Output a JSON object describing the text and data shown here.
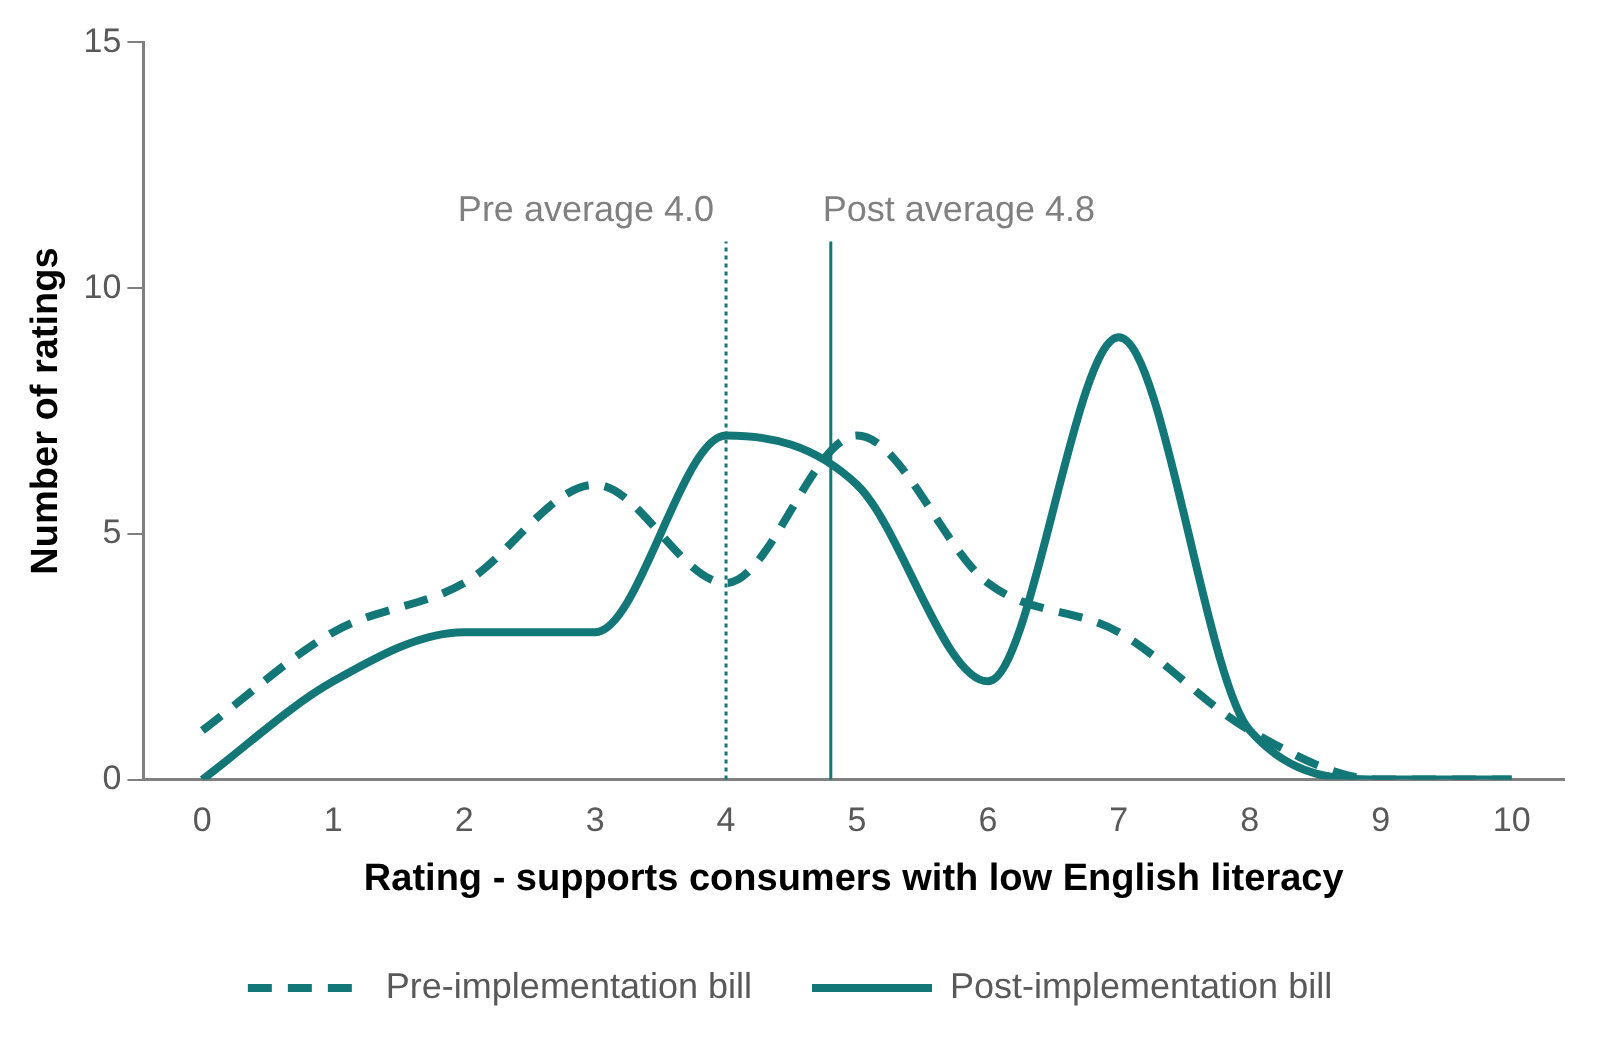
{
  "chart_data": {
    "type": "line",
    "xlabel": "Rating - supports consumers with low English literacy",
    "ylabel": "Number of ratings",
    "x": [
      0,
      1,
      2,
      3,
      4,
      5,
      6,
      7,
      8,
      9,
      10
    ],
    "series": [
      {
        "name": "Pre-implementation bill",
        "color": "#147777",
        "line_style": "dashed",
        "values": [
          1,
          3,
          4,
          6,
          4,
          7,
          4,
          3,
          1,
          0,
          0
        ]
      },
      {
        "name": "Post-implementation bill",
        "color": "#147777",
        "line_style": "solid",
        "values": [
          0,
          2,
          3,
          3,
          7,
          6,
          2,
          9,
          1,
          0,
          0
        ]
      }
    ],
    "xlim": [
      -0.45,
      10.4
    ],
    "xticks": [
      0,
      1,
      2,
      3,
      4,
      5,
      6,
      7,
      8,
      9,
      10
    ],
    "ylim": [
      0,
      15
    ],
    "yticks": [
      0,
      5,
      10,
      15
    ],
    "ref_lines": [
      {
        "axis": "x",
        "value": 4.0,
        "label": "Pre average 4.0",
        "color": "#147777",
        "line_style": "dotted"
      },
      {
        "axis": "x",
        "value": 4.8,
        "label": "Post average 4.8",
        "color": "#147777",
        "line_style": "solid"
      }
    ],
    "grid": false,
    "legend": "bottom",
    "marker": "none"
  }
}
